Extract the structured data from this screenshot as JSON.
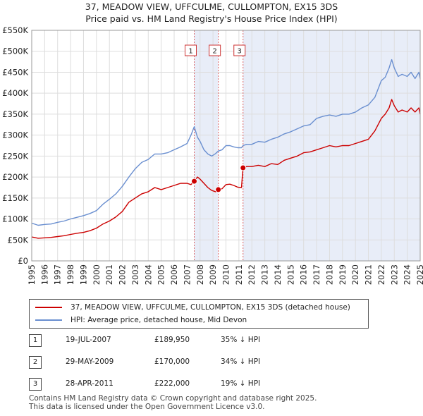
{
  "chart_data": {
    "type": "line",
    "title": "37, MEADOW VIEW, UFFCULME, CULLOMPTON, EX15 3DS",
    "subtitle": "Price paid vs. HM Land Registry's House Price Index (HPI)",
    "xlabel": "",
    "ylabel": "",
    "xlim": [
      1995,
      2025
    ],
    "ylim": [
      0,
      550000
    ],
    "x_ticks": [
      "1995",
      "1996",
      "1997",
      "1998",
      "1999",
      "2000",
      "2001",
      "2002",
      "2003",
      "2004",
      "2005",
      "2006",
      "2007",
      "2008",
      "2009",
      "2010",
      "2011",
      "2012",
      "2013",
      "2014",
      "2015",
      "2016",
      "2017",
      "2018",
      "2019",
      "2020",
      "2021",
      "2022",
      "2023",
      "2024",
      "2025"
    ],
    "y_ticks": [
      {
        "value": 0,
        "label": "£0"
      },
      {
        "value": 50000,
        "label": "£50K"
      },
      {
        "value": 100000,
        "label": "£100K"
      },
      {
        "value": 150000,
        "label": "£150K"
      },
      {
        "value": 200000,
        "label": "£200K"
      },
      {
        "value": 250000,
        "label": "£250K"
      },
      {
        "value": 300000,
        "label": "£300K"
      },
      {
        "value": 350000,
        "label": "£350K"
      },
      {
        "value": 400000,
        "label": "£400K"
      },
      {
        "value": 450000,
        "label": "£450K"
      },
      {
        "value": 500000,
        "label": "£500K"
      },
      {
        "value": 550000,
        "label": "£550K"
      }
    ],
    "shaded_regions": [
      [
        2007.55,
        2009.41
      ],
      [
        2011.32,
        2025
      ]
    ],
    "series": [
      {
        "name": "37, MEADOW VIEW, UFFCULME, CULLOMPTON, EX15 3DS (detached house)",
        "color": "#cc0000",
        "x": [
          1995,
          1995.5,
          1996,
          1996.5,
          1997,
          1997.5,
          1998,
          1998.5,
          1999,
          1999.5,
          2000,
          2000.5,
          2001,
          2001.5,
          2002,
          2002.5,
          2003,
          2003.5,
          2004,
          2004.5,
          2005,
          2005.5,
          2006,
          2006.5,
          2007,
          2007.3,
          2007.55,
          2007.8,
          2008,
          2008.3,
          2008.6,
          2008.9,
          2009.2,
          2009.41,
          2009.7,
          2010,
          2010.3,
          2010.6,
          2010.9,
          2011.2,
          2011.32,
          2011.6,
          2012,
          2012.5,
          2013,
          2013.5,
          2014,
          2014.5,
          2015,
          2015.5,
          2016,
          2016.5,
          2017,
          2017.5,
          2018,
          2018.5,
          2019,
          2019.5,
          2020,
          2020.5,
          2021,
          2021.5,
          2022,
          2022.3,
          2022.6,
          2022.8,
          2023,
          2023.3,
          2023.6,
          2024,
          2024.3,
          2024.6,
          2024.9,
          2025
        ],
        "values": [
          57000,
          54000,
          55000,
          56000,
          58000,
          60000,
          63000,
          66000,
          68000,
          72000,
          78000,
          88000,
          95000,
          105000,
          118000,
          140000,
          150000,
          160000,
          165000,
          175000,
          170000,
          175000,
          180000,
          185000,
          185000,
          182000,
          189950,
          200000,
          195000,
          185000,
          175000,
          168000,
          165000,
          170000,
          172000,
          182000,
          183000,
          180000,
          176000,
          175000,
          222000,
          225000,
          225000,
          228000,
          225000,
          232000,
          230000,
          240000,
          245000,
          250000,
          258000,
          260000,
          265000,
          270000,
          275000,
          272000,
          275000,
          275000,
          280000,
          285000,
          290000,
          310000,
          340000,
          350000,
          365000,
          385000,
          370000,
          355000,
          360000,
          355000,
          365000,
          355000,
          365000,
          350000
        ]
      },
      {
        "name": "HPI: Average price, detached house, Mid Devon",
        "color": "#6a8fd0",
        "x": [
          1995,
          1995.5,
          1996,
          1996.5,
          1997,
          1997.5,
          1998,
          1998.5,
          1999,
          1999.5,
          2000,
          2000.5,
          2001,
          2001.5,
          2002,
          2002.5,
          2003,
          2003.5,
          2004,
          2004.5,
          2005,
          2005.5,
          2006,
          2006.5,
          2007,
          2007.3,
          2007.55,
          2007.8,
          2008,
          2008.3,
          2008.6,
          2008.9,
          2009.2,
          2009.41,
          2009.7,
          2010,
          2010.3,
          2010.6,
          2010.9,
          2011.2,
          2011.32,
          2011.6,
          2012,
          2012.5,
          2013,
          2013.5,
          2014,
          2014.5,
          2015,
          2015.5,
          2016,
          2016.5,
          2017,
          2017.5,
          2018,
          2018.5,
          2019,
          2019.5,
          2020,
          2020.5,
          2021,
          2021.5,
          2022,
          2022.3,
          2022.6,
          2022.8,
          2023,
          2023.3,
          2023.6,
          2024,
          2024.3,
          2024.6,
          2024.9,
          2025
        ],
        "values": [
          90000,
          85000,
          87000,
          88000,
          92000,
          95000,
          100000,
          104000,
          108000,
          113000,
          120000,
          135000,
          147000,
          160000,
          178000,
          200000,
          220000,
          235000,
          242000,
          255000,
          255000,
          258000,
          265000,
          272000,
          280000,
          300000,
          320000,
          295000,
          285000,
          265000,
          255000,
          250000,
          256000,
          262000,
          265000,
          275000,
          275000,
          272000,
          270000,
          270000,
          275000,
          278000,
          278000,
          285000,
          283000,
          290000,
          295000,
          303000,
          308000,
          315000,
          322000,
          325000,
          340000,
          345000,
          348000,
          345000,
          350000,
          350000,
          355000,
          365000,
          372000,
          390000,
          430000,
          438000,
          460000,
          480000,
          460000,
          440000,
          445000,
          440000,
          450000,
          435000,
          450000,
          435000
        ]
      }
    ],
    "sale_points": [
      {
        "x": 2007.55,
        "value": 189950
      },
      {
        "x": 2009.41,
        "value": 170000
      },
      {
        "x": 2011.32,
        "value": 222000
      }
    ],
    "markers": [
      "1",
      "2",
      "3"
    ]
  },
  "legend": {
    "property": "37, MEADOW VIEW, UFFCULME, CULLOMPTON, EX15 3DS (detached house)",
    "hpi": "HPI: Average price, detached house, Mid Devon"
  },
  "sales": [
    {
      "num": "1",
      "date": "19-JUL-2007",
      "price": "£189,950",
      "hpi": "35% ↓ HPI"
    },
    {
      "num": "2",
      "date": "29-MAY-2009",
      "price": "£170,000",
      "hpi": "34% ↓ HPI"
    },
    {
      "num": "3",
      "date": "28-APR-2011",
      "price": "£222,000",
      "hpi": "19% ↓ HPI"
    }
  ],
  "footer": {
    "line1": "Contains HM Land Registry data © Crown copyright and database right 2025.",
    "line2": "This data is licensed under the Open Government Licence v3.0."
  }
}
